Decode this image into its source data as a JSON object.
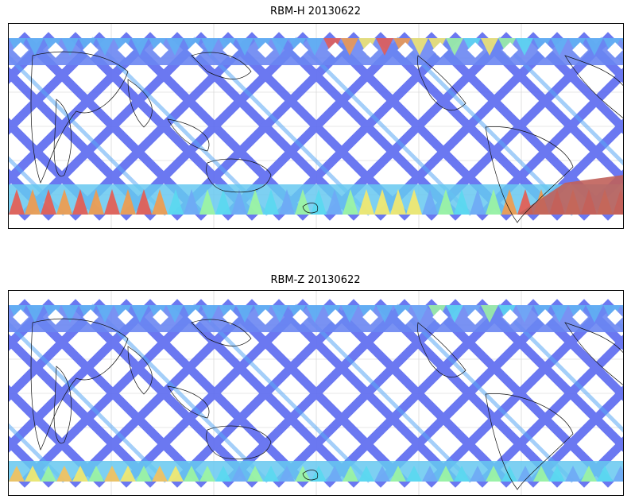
{
  "panels": [
    {
      "title": "RBM-H 20130622",
      "swath_color": "#5f6df0",
      "edge_band_colors": [
        "#e85a4f",
        "#f39a4a",
        "#f6e96a",
        "#9df5a0",
        "#5ad8f0",
        "#6fa8f5"
      ],
      "polar_north_intensity": "high",
      "polar_south_intensity": "very-high"
    },
    {
      "title": "RBM-Z 20130622",
      "swath_color": "#5f6df0",
      "edge_band_colors": [
        "#f6c15a",
        "#f6e96a",
        "#9df5a0",
        "#5ad8f0",
        "#6fa8f5"
      ],
      "polar_north_intensity": "moderate",
      "polar_south_intensity": "moderate"
    }
  ]
}
